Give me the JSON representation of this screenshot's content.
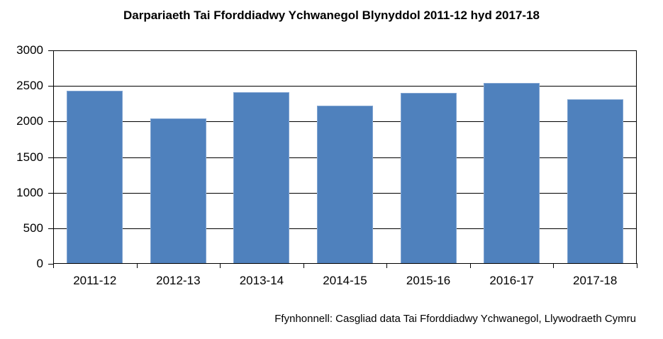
{
  "chart_data": {
    "type": "bar",
    "title": "Darpariaeth Tai Fforddiadwy Ychwanegol Blynyddol 2011-12 hyd 2017-18",
    "xlabel": "",
    "ylabel": "",
    "categories": [
      "2011-12",
      "2012-13",
      "2013-14",
      "2014-15",
      "2015-16",
      "2016-17",
      "2017-18"
    ],
    "values": [
      2430,
      2040,
      2410,
      2220,
      2400,
      2540,
      2310
    ],
    "ylim": [
      0,
      3000
    ],
    "yticks": [
      0,
      500,
      1000,
      1500,
      2000,
      2500,
      3000
    ],
    "grid": true,
    "legend": null,
    "bar_color": "#4f81bd",
    "source": "Ffynhonnell: Casgliad data Tai Fforddiadwy Ychwanegol, Llywodraeth Cymru"
  },
  "labels": {
    "title": "Darpariaeth Tai Fforddiadwy Ychwanegol Blynyddol 2011-12 hyd 2017-18",
    "source": "Ffynhonnell: Casgliad data Tai Fforddiadwy Ychwanegol, Llywodraeth Cymru",
    "yticks": [
      "0",
      "500",
      "1000",
      "1500",
      "2000",
      "2500",
      "3000"
    ],
    "xticks": [
      "2011-12",
      "2012-13",
      "2013-14",
      "2014-15",
      "2015-16",
      "2016-17",
      "2017-18"
    ]
  }
}
